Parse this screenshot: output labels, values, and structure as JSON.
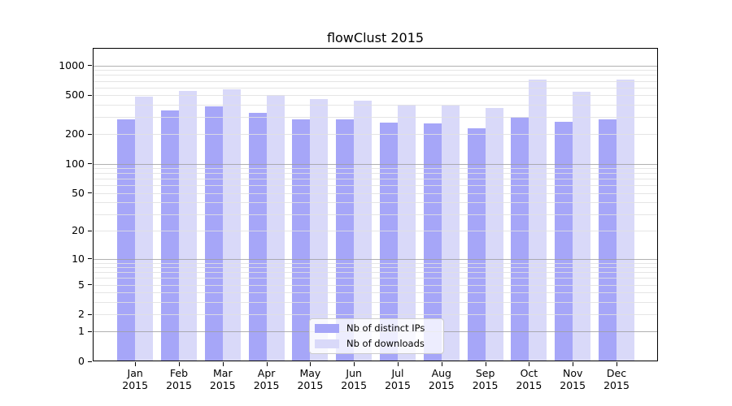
{
  "chart_data": {
    "type": "bar",
    "title": "flowClust 2015",
    "y_scale": "log10(value+1)",
    "categories": [
      "Jan",
      "Feb",
      "Mar",
      "Apr",
      "May",
      "Jun",
      "Jul",
      "Aug",
      "Sep",
      "Oct",
      "Nov",
      "Dec"
    ],
    "x_tick_year": "2015",
    "series": [
      {
        "name": "Nb of distinct IPs",
        "color": "#a6a6f8",
        "values": [
          283,
          352,
          388,
          329,
          286,
          285,
          264,
          256,
          231,
          300,
          268,
          285
        ]
      },
      {
        "name": "Nb of downloads",
        "color": "#d9d9f9",
        "values": [
          481,
          556,
          570,
          505,
          453,
          436,
          397,
          392,
          374,
          724,
          538,
          716
        ]
      }
    ],
    "y_axis": {
      "tick_values": [
        1000,
        500,
        200,
        100,
        50,
        20,
        10,
        5,
        2,
        1,
        0
      ],
      "tick_labels": [
        "1000",
        "500",
        "200",
        "100",
        "50",
        "20",
        "10",
        "5",
        "2",
        "1",
        "0"
      ],
      "minor_gridline_values": [
        900,
        800,
        700,
        600,
        400,
        300,
        90,
        80,
        70,
        60,
        40,
        30,
        9,
        8,
        7,
        6,
        4,
        3
      ]
    },
    "legend_position": "bottom-center",
    "grid": true,
    "colors": {
      "background": "#ffffff",
      "axis": "#000000",
      "decade_gridline": "#c2c2c2",
      "minor_gridline": "#e6e6e6"
    }
  }
}
